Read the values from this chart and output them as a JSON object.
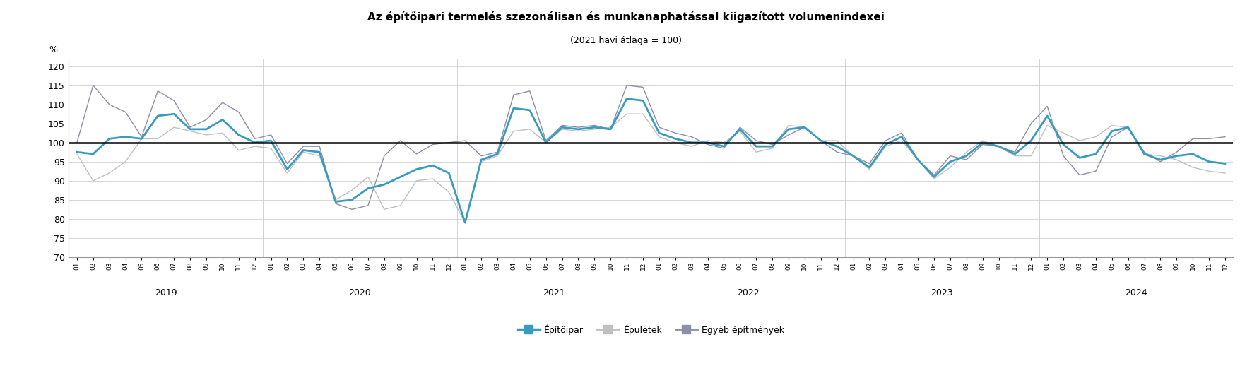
{
  "title": "Az építőipari termelés szezonálisan és munkanaphatással kiigazított volumenindexei",
  "subtitle": "(2021 havi átlaga = 100)",
  "ylabel": "%",
  "ylim": [
    70,
    122
  ],
  "yticks": [
    70,
    75,
    80,
    85,
    90,
    95,
    100,
    105,
    110,
    115,
    120
  ],
  "legend_labels": [
    "Építőipar",
    "Épületek",
    "Egyéb építmények"
  ],
  "color_epitoipar": "#3a9bbf",
  "color_epuletek": "#c0c0c0",
  "color_egyeb": "#8b8fa8",
  "color_100line": "#000000",
  "epitoipar": [
    97.5,
    97.0,
    101.0,
    101.5,
    101.0,
    107.0,
    107.5,
    103.5,
    103.5,
    106.0,
    102.0,
    100.0,
    100.5,
    93.0,
    98.0,
    97.5,
    84.5,
    85.0,
    88.0,
    89.0,
    91.0,
    93.0,
    94.0,
    92.0,
    79.0,
    95.5,
    97.0,
    109.0,
    108.5,
    100.0,
    104.0,
    103.5,
    104.0,
    103.5,
    111.5,
    111.0,
    102.5,
    101.0,
    100.0,
    100.0,
    99.0,
    103.5,
    99.0,
    99.0,
    103.5,
    104.0,
    100.5,
    99.0,
    96.5,
    93.5,
    99.5,
    101.5,
    95.5,
    91.0,
    95.0,
    96.5,
    100.0,
    99.0,
    97.0,
    100.5,
    107.0,
    99.5,
    96.0,
    97.0,
    103.0,
    104.0,
    97.0,
    95.5,
    96.5,
    97.0,
    95.0,
    94.5
  ],
  "epuletek": [
    97.0,
    90.0,
    92.0,
    95.0,
    101.0,
    101.0,
    104.0,
    103.0,
    102.0,
    102.5,
    98.0,
    99.0,
    98.5,
    92.0,
    97.5,
    96.5,
    85.0,
    87.5,
    91.0,
    82.5,
    83.5,
    90.0,
    90.5,
    87.0,
    79.0,
    95.0,
    96.5,
    103.0,
    103.5,
    100.0,
    103.5,
    103.0,
    103.5,
    104.0,
    107.5,
    107.5,
    101.5,
    100.0,
    99.0,
    100.5,
    100.0,
    103.0,
    97.5,
    98.5,
    104.5,
    104.0,
    100.5,
    100.5,
    96.5,
    93.0,
    99.0,
    100.5,
    95.5,
    90.5,
    93.5,
    97.5,
    100.5,
    99.0,
    96.5,
    96.5,
    104.5,
    102.5,
    100.5,
    101.5,
    104.5,
    104.0,
    97.0,
    96.5,
    95.5,
    93.5,
    92.5,
    92.0
  ],
  "egyeb": [
    100.0,
    115.0,
    110.0,
    108.0,
    101.5,
    113.5,
    111.0,
    104.0,
    106.0,
    110.5,
    108.0,
    101.0,
    102.0,
    94.5,
    99.0,
    99.0,
    84.0,
    82.5,
    83.5,
    96.5,
    100.5,
    97.0,
    99.5,
    100.0,
    100.5,
    96.5,
    97.5,
    112.5,
    113.5,
    100.5,
    104.5,
    104.0,
    104.5,
    103.5,
    115.0,
    114.5,
    104.0,
    102.5,
    101.5,
    99.5,
    98.5,
    104.0,
    100.5,
    99.5,
    102.0,
    104.0,
    100.5,
    97.5,
    96.5,
    94.5,
    100.5,
    102.5,
    95.5,
    91.5,
    96.5,
    95.5,
    99.5,
    99.0,
    97.5,
    105.0,
    109.5,
    96.5,
    91.5,
    92.5,
    101.5,
    104.0,
    97.5,
    95.0,
    97.5,
    101.0,
    101.0,
    101.5
  ],
  "n_months": 72
}
